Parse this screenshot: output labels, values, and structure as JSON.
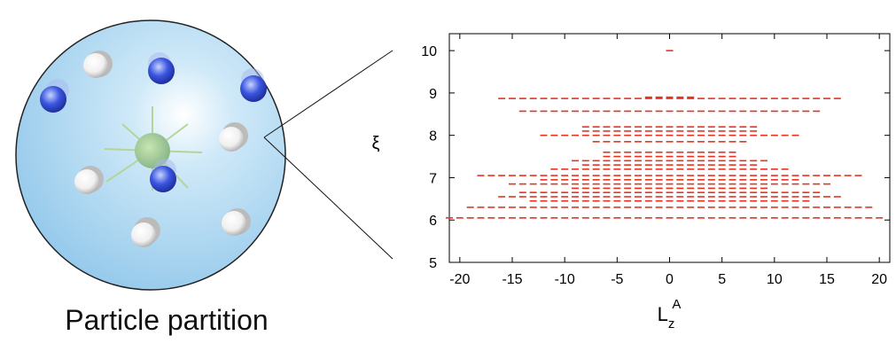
{
  "caption": "Particle partition",
  "chart_data": {
    "type": "scatter",
    "ylabel": "ξ",
    "xlabel": {
      "main": "L",
      "sub": "z",
      "sup": "A"
    },
    "color": "#e8321e",
    "xlim": [
      -21,
      21
    ],
    "ylim": [
      5,
      10.4
    ],
    "xticks": [
      -20,
      -15,
      -10,
      -5,
      0,
      5,
      10,
      15,
      20
    ],
    "yticks": [
      5,
      6,
      7,
      8,
      9,
      10
    ],
    "rows": [
      {
        "y": 10.0,
        "x": [
          0
        ]
      },
      {
        "y": 8.9,
        "x": [
          -2,
          -1,
          0,
          1,
          2
        ]
      },
      {
        "y": 8.87,
        "x": [
          -16,
          -15,
          -14,
          -13,
          -12,
          -11,
          -10,
          -9,
          -8,
          -7,
          -6,
          -5,
          -4,
          -3,
          -2,
          -1,
          0,
          1,
          2,
          3,
          4,
          5,
          6,
          7,
          8,
          9,
          10,
          11,
          12,
          13,
          14,
          15,
          16
        ]
      },
      {
        "y": 8.57,
        "x": [
          -14,
          -13,
          -12,
          -11,
          -10,
          -9,
          -8,
          -7,
          -6,
          -5,
          -4,
          -3,
          -2,
          -1,
          0,
          1,
          2,
          3,
          4,
          5,
          6,
          7,
          8,
          9,
          10,
          11,
          12,
          13,
          14
        ]
      },
      {
        "y": 8.2,
        "x": [
          -8,
          -7,
          -6,
          -5,
          -4,
          -3,
          -2,
          -1,
          0,
          1,
          2,
          3,
          4,
          5,
          6,
          7,
          8
        ]
      },
      {
        "y": 8.1,
        "x": [
          -8,
          -7,
          -6,
          -5,
          -4,
          -3,
          -2,
          -1,
          0,
          1,
          2,
          3,
          4,
          5,
          6,
          7,
          8
        ]
      },
      {
        "y": 8.0,
        "x": [
          -12,
          -11,
          -10,
          -9,
          -8,
          -7,
          -6,
          -5,
          -4,
          -3,
          -2,
          -1,
          0,
          1,
          2,
          3,
          4,
          5,
          6,
          7,
          8,
          9,
          10,
          11,
          12
        ]
      },
      {
        "y": 7.85,
        "x": [
          -7,
          -6,
          -5,
          -4,
          -3,
          -2,
          -1,
          0,
          1,
          2,
          3,
          4,
          5,
          6,
          7
        ]
      },
      {
        "y": 7.6,
        "x": [
          -6,
          -5,
          -4,
          -3,
          -2,
          -1,
          0,
          1,
          2,
          3,
          4,
          5,
          6
        ]
      },
      {
        "y": 7.5,
        "x": [
          -6,
          -5,
          -4,
          -3,
          -2,
          -1,
          0,
          1,
          2,
          3,
          4,
          5,
          6
        ]
      },
      {
        "y": 7.4,
        "x": [
          -9,
          -8,
          -7,
          -6,
          -5,
          -4,
          -3,
          -2,
          -1,
          0,
          1,
          2,
          3,
          4,
          5,
          6,
          7,
          8,
          9
        ]
      },
      {
        "y": 7.3,
        "x": [
          -8,
          -7,
          -6,
          -5,
          -4,
          -3,
          -2,
          -1,
          0,
          1,
          2,
          3,
          4,
          5,
          6,
          7,
          8
        ]
      },
      {
        "y": 7.2,
        "x": [
          -11,
          -10,
          -9,
          -8,
          -7,
          -6,
          -5,
          -4,
          -3,
          -2,
          -1,
          0,
          1,
          2,
          3,
          4,
          5,
          6,
          7,
          8,
          9,
          10,
          11
        ]
      },
      {
        "y": 7.05,
        "x": [
          -18,
          -17,
          -16,
          -15,
          -14,
          -13,
          -12,
          -11,
          -10,
          -9,
          -8,
          -7,
          -6,
          -5,
          -4,
          -3,
          -2,
          -1,
          0,
          1,
          2,
          3,
          4,
          5,
          6,
          7,
          8,
          9,
          10,
          11,
          12,
          13,
          14,
          15,
          16,
          17,
          18
        ]
      },
      {
        "y": 6.95,
        "x": [
          -12,
          -11,
          -10,
          -9,
          -8,
          -7,
          -6,
          -5,
          -4,
          -3,
          -2,
          -1,
          0,
          1,
          2,
          3,
          4,
          5,
          6,
          7,
          8,
          9,
          10,
          11,
          12
        ]
      },
      {
        "y": 6.85,
        "x": [
          -15,
          -14,
          -13,
          -12,
          -11,
          -10,
          -9,
          -8,
          -7,
          -6,
          -5,
          -4,
          -3,
          -2,
          -1,
          0,
          1,
          2,
          3,
          4,
          5,
          6,
          7,
          8,
          9,
          10,
          11,
          12,
          13,
          14,
          15
        ]
      },
      {
        "y": 6.75,
        "x": [
          -9,
          -8,
          -7,
          -6,
          -5,
          -4,
          -3,
          -2,
          -1,
          0,
          1,
          2,
          3,
          4,
          5,
          6,
          7,
          8,
          9
        ]
      },
      {
        "y": 6.65,
        "x": [
          -14,
          -13,
          -12,
          -11,
          -10,
          -9,
          -8,
          -7,
          -6,
          -5,
          -4,
          -3,
          -2,
          -1,
          0,
          1,
          2,
          3,
          4,
          5,
          6,
          7,
          8,
          9,
          10,
          11,
          12,
          13,
          14
        ]
      },
      {
        "y": 6.55,
        "x": [
          -16,
          -15,
          -14,
          -13,
          -12,
          -11,
          -10,
          -9,
          -8,
          -7,
          -6,
          -5,
          -4,
          -3,
          -2,
          -1,
          0,
          1,
          2,
          3,
          4,
          5,
          6,
          7,
          8,
          9,
          10,
          11,
          12,
          13,
          14,
          15,
          16
        ]
      },
      {
        "y": 6.45,
        "x": [
          -13,
          -12,
          -11,
          -10,
          -9,
          -8,
          -7,
          -6,
          -5,
          -4,
          -3,
          -2,
          -1,
          0,
          1,
          2,
          3,
          4,
          5,
          6,
          7,
          8,
          9,
          10,
          11,
          12,
          13
        ]
      },
      {
        "y": 6.3,
        "x": [
          -19,
          -18,
          -17,
          -16,
          -15,
          -14,
          -13,
          -12,
          -11,
          -10,
          -9,
          -8,
          -7,
          -6,
          -5,
          -4,
          -3,
          -2,
          -1,
          0,
          1,
          2,
          3,
          4,
          5,
          6,
          7,
          8,
          9,
          10,
          11,
          12,
          13,
          14,
          15,
          16,
          17,
          18,
          19
        ]
      },
      {
        "y": 6.05,
        "x": [
          -21,
          -20,
          -19,
          -18,
          -17,
          -16,
          -15,
          -14,
          -13,
          -12,
          -11,
          -10,
          -9,
          -8,
          -7,
          -6,
          -5,
          -4,
          -3,
          -2,
          -1,
          0,
          1,
          2,
          3,
          4,
          5,
          6,
          7,
          8,
          9,
          10,
          11,
          12,
          13,
          14,
          15,
          16,
          17,
          18,
          19,
          20
        ]
      }
    ]
  }
}
